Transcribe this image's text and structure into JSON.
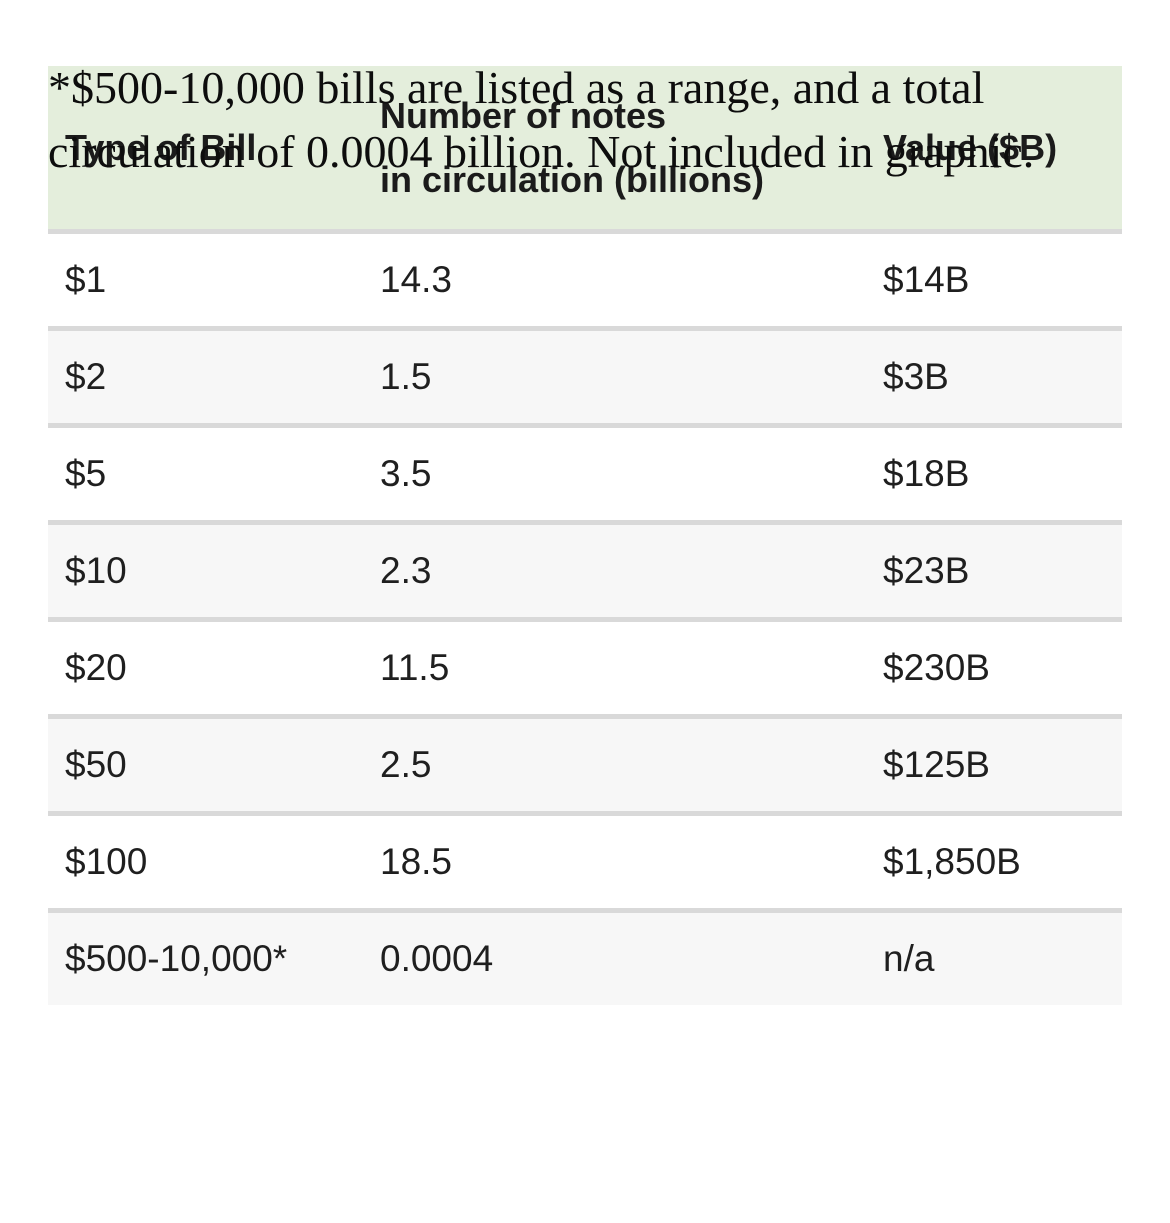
{
  "chart_data": {
    "type": "table",
    "columns": [
      "Type of Bill",
      "Number of notes in circulation (billions)",
      "Value ($B)"
    ],
    "header": {
      "col1": "Type of Bill",
      "col2_line1": "Number of notes",
      "col2_line2": "in circulation (billions)",
      "col3": "Value ($B)"
    },
    "rows": [
      {
        "bill": "$1",
        "notes": "14.3",
        "value": "$14B"
      },
      {
        "bill": "$2",
        "notes": "1.5",
        "value": "$3B"
      },
      {
        "bill": "$5",
        "notes": "3.5",
        "value": "$18B"
      },
      {
        "bill": "$10",
        "notes": "2.3",
        "value": "$23B"
      },
      {
        "bill": "$20",
        "notes": "11.5",
        "value": "$230B"
      },
      {
        "bill": "$50",
        "notes": "2.5",
        "value": "$125B"
      },
      {
        "bill": "$100",
        "notes": "18.5",
        "value": "$1,850B"
      },
      {
        "bill": "$500-10,000*",
        "notes": "0.0004",
        "value": "n/a"
      }
    ],
    "footnote": "*$500-10,000 bills are listed as a range, and a total circulation of 0.0004 billion. Not included in graphic."
  },
  "footnote": {
    "line1": "*$500-10,000 bills are listed as a range, and a total",
    "line2": "circulation of 0.0004 billion. Not included in graphic."
  },
  "colors": {
    "header_bg": "#e4eedc",
    "row_alt_bg": "#f7f7f7",
    "divider": "#d9d9d9",
    "text": "#1f1f1f"
  }
}
